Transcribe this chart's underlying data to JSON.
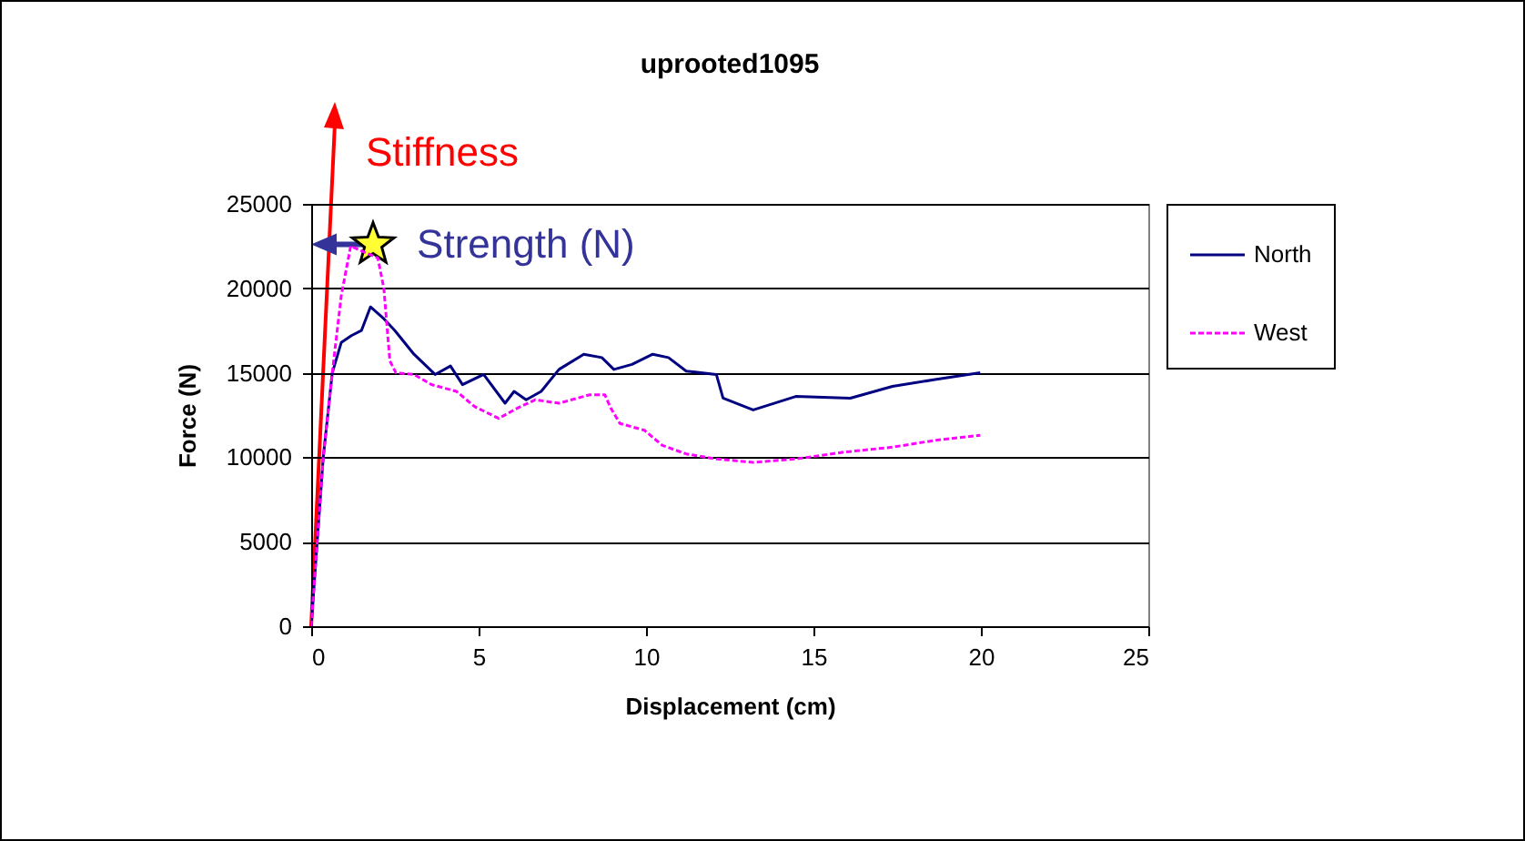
{
  "chart_data": {
    "type": "line",
    "title": "uprooted1095",
    "xlabel": "Displacement (cm)",
    "ylabel": "Force (N)",
    "xlim": [
      0,
      25
    ],
    "xticks": [
      0,
      5,
      10,
      15,
      20,
      25
    ],
    "ylim": [
      0,
      25000
    ],
    "yticks": [
      0,
      5000,
      10000,
      15000,
      20000,
      25000
    ],
    "grid": "y",
    "legend": "right",
    "annotations": [
      "Stiffness",
      {
        "text": "Strength (N)",
        "x": 1.85,
        "y": 22600
      }
    ],
    "series": [
      {
        "name": "North",
        "color": "#000080",
        "line_style": "solid",
        "x": [
          0,
          0.36,
          0.63,
          0.9,
          1.2,
          1.5,
          1.77,
          2.17,
          2.5,
          3.07,
          3.7,
          4.16,
          4.52,
          5.15,
          5.79,
          6.06,
          6.42,
          6.87,
          7.4,
          8.14,
          8.68,
          9.04,
          9.58,
          10.2,
          10.67,
          11.2,
          12.1,
          12.3,
          13.2,
          14.47,
          16.1,
          17.36,
          18.63,
          19.98
        ],
        "values": [
          0,
          10000,
          15000,
          16800,
          17200,
          17500,
          18900,
          18200,
          17500,
          16100,
          14900,
          15400,
          14300,
          14900,
          13200,
          13900,
          13400,
          13900,
          15200,
          16100,
          15900,
          15200,
          15500,
          16100,
          15900,
          15100,
          14900,
          13500,
          12800,
          13600,
          13500,
          14200,
          14600,
          15000
        ]
      },
      {
        "name": "West",
        "color": "#ff00ff",
        "line_style": "dashed",
        "x": [
          0,
          0.36,
          0.63,
          0.9,
          1.18,
          1.99,
          2.17,
          2.35,
          2.53,
          3.07,
          3.6,
          4.34,
          4.88,
          5.6,
          6.15,
          6.69,
          7.4,
          8.32,
          8.77,
          8.95,
          9.22,
          9.95,
          10.49,
          11.2,
          12.1,
          13.2,
          14.47,
          15.9,
          17.36,
          18.63,
          19.98
        ],
        "values": [
          0,
          10000,
          15000,
          19600,
          22500,
          21800,
          20000,
          15700,
          15000,
          14900,
          14300,
          13900,
          13000,
          12300,
          12900,
          13400,
          13200,
          13700,
          13700,
          12900,
          12000,
          11600,
          10700,
          10200,
          9900,
          9700,
          9900,
          10300,
          10600,
          11000,
          11300
        ]
      }
    ]
  }
}
